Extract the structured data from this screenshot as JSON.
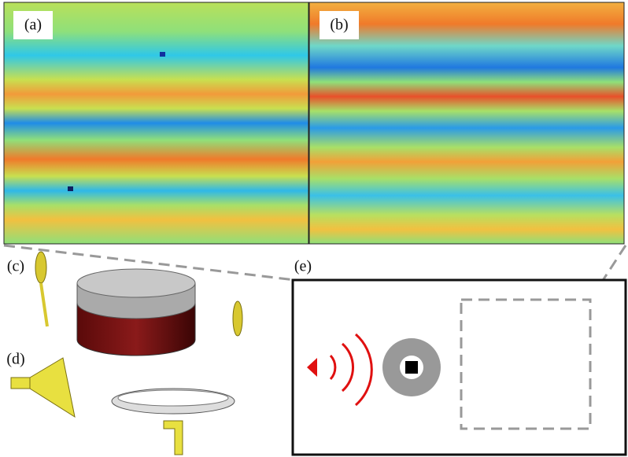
{
  "panels": {
    "a": "(a)",
    "b": "(b)",
    "c": "(c)",
    "d": "(d)",
    "e": "(e)"
  }
}
